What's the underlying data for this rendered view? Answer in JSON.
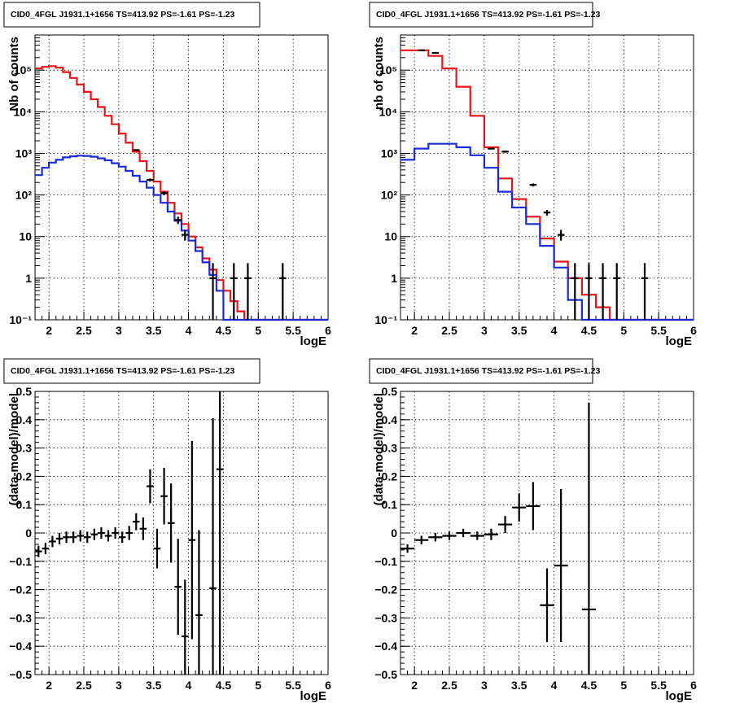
{
  "palette": {
    "data": "#000000",
    "model_total": "#e8141a",
    "model_component": "#1a2bd9",
    "grid": "#000000"
  },
  "chart_data": [
    {
      "type": "line",
      "title": "CID0_4FGL J1931.1+1656 TS=413.92 PS=-1.61 PS=-1.23",
      "xlabel": "logE",
      "ylabel": "Nb of counts",
      "xlim": [
        1.8,
        6.0
      ],
      "ylim": [
        0.1,
        700000
      ],
      "yscale": "log",
      "grid": true,
      "xticks": [
        "2",
        "2.5",
        "3",
        "3.5",
        "4",
        "4.5",
        "5",
        "5.5",
        "6"
      ],
      "yticks": [
        "10⁻¹",
        "1",
        "10",
        "10²",
        "10³",
        "10⁴",
        "10⁵"
      ],
      "bin_edges": [
        1.8,
        1.9,
        2.0,
        2.1,
        2.2,
        2.3,
        2.4,
        2.5,
        2.6,
        2.7,
        2.8,
        2.9,
        3.0,
        3.1,
        3.2,
        3.3,
        3.4,
        3.5,
        3.6,
        3.7,
        3.8,
        3.9,
        4.0,
        4.1,
        4.2,
        4.3,
        4.4,
        4.5,
        4.6,
        4.7,
        4.8,
        4.9,
        5.0,
        5.1,
        5.2,
        5.3,
        5.4,
        5.5,
        5.6,
        5.7,
        5.8,
        5.9,
        6.0
      ],
      "series": [
        {
          "role": "model_total",
          "values": [
            110000,
            120000,
            125000,
            115000,
            90000,
            65000,
            45000,
            30000,
            20000,
            13000,
            8000,
            5000,
            3000,
            1800,
            1100,
            650,
            380,
            210,
            120,
            65,
            36,
            20,
            10,
            5.5,
            3.0,
            1.6,
            0.9,
            0.5,
            0.28,
            0.16,
            0.1,
            0.1,
            0.1,
            0.1,
            0.1,
            0.1,
            0.1,
            0.1,
            0.1,
            0.1,
            0.1,
            0.1
          ]
        },
        {
          "role": "model_component",
          "values": [
            300,
            450,
            600,
            700,
            800,
            850,
            880,
            870,
            830,
            760,
            680,
            580,
            480,
            380,
            290,
            210,
            150,
            100,
            65,
            40,
            24,
            14,
            8,
            4.5,
            2.4,
            1.2,
            0.5,
            0.1,
            0.1,
            0.1,
            0.1,
            0.1,
            0.1,
            0.1,
            0.1,
            0.1,
            0.1,
            0.1,
            0.1,
            0.1,
            0.1,
            0.1
          ]
        }
      ],
      "points": [
        {
          "x": 3.25,
          "y": 1200,
          "yerr_lo": 1150,
          "yerr_hi": 1250
        },
        {
          "x": 3.45,
          "y": 230,
          "yerr_lo": 210,
          "yerr_hi": 250
        },
        {
          "x": 3.65,
          "y": 110,
          "yerr_lo": 98,
          "yerr_hi": 122
        },
        {
          "x": 3.85,
          "y": 25,
          "yerr_lo": 20,
          "yerr_hi": 30
        },
        {
          "x": 3.95,
          "y": 11,
          "yerr_lo": 8,
          "yerr_hi": 14.5
        },
        {
          "x": 4.35,
          "y": 1,
          "yerr_lo": 0.1,
          "yerr_hi": 2.3
        },
        {
          "x": 4.65,
          "y": 1,
          "yerr_lo": 0.1,
          "yerr_hi": 2.3
        },
        {
          "x": 4.85,
          "y": 1,
          "yerr_lo": 0.1,
          "yerr_hi": 2.3
        },
        {
          "x": 5.35,
          "y": 1,
          "yerr_lo": 0.1,
          "yerr_hi": 2.3
        }
      ]
    },
    {
      "type": "line",
      "title": "CID0_4FGL J1931.1+1656 TS=413.92 PS=-1.61 PS=-1.23",
      "xlabel": "logE",
      "ylabel": "nb of counts",
      "xlim": [
        1.8,
        6.0
      ],
      "ylim": [
        0.1,
        700000
      ],
      "yscale": "log",
      "grid": true,
      "xticks": [
        "2",
        "2.5",
        "3",
        "3.5",
        "4",
        "4.5",
        "5",
        "5.5",
        "6"
      ],
      "yticks": [
        "10⁻¹",
        "1",
        "10",
        "10²",
        "10³",
        "10⁴",
        "10⁵"
      ],
      "bin_edges": [
        1.8,
        2.0,
        2.2,
        2.4,
        2.6,
        2.8,
        3.0,
        3.2,
        3.4,
        3.6,
        3.8,
        4.0,
        4.2,
        4.4,
        4.6,
        4.8,
        5.0,
        5.2,
        5.4,
        5.6,
        5.8,
        6.0
      ],
      "series": [
        {
          "role": "model_total",
          "values": [
            300000,
            300000,
            220000,
            110000,
            40000,
            8000,
            1400,
            250,
            80,
            30,
            9,
            2.5,
            1.0,
            0.4,
            0.2,
            0.1,
            0.1,
            0.1,
            0.1,
            0.1,
            0.1
          ]
        },
        {
          "role": "model_component",
          "values": [
            700,
            1300,
            1700,
            1700,
            1400,
            900,
            450,
            120,
            50,
            20,
            6,
            1.8,
            0.3,
            0.1,
            0.1,
            0.1,
            0.1,
            0.1,
            0.1,
            0.1,
            0.1
          ]
        }
      ],
      "points": [
        {
          "x": 2.1,
          "y": 300000,
          "yerr_lo": 298000,
          "yerr_hi": 302000
        },
        {
          "x": 2.3,
          "y": 260000,
          "yerr_lo": 258000,
          "yerr_hi": 262000
        },
        {
          "x": 3.1,
          "y": 1300,
          "yerr_lo": 1250,
          "yerr_hi": 1350
        },
        {
          "x": 3.3,
          "y": 1100,
          "yerr_lo": 1040,
          "yerr_hi": 1160
        },
        {
          "x": 3.7,
          "y": 175,
          "yerr_lo": 160,
          "yerr_hi": 190
        },
        {
          "x": 3.9,
          "y": 38,
          "yerr_lo": 32,
          "yerr_hi": 44
        },
        {
          "x": 4.1,
          "y": 11,
          "yerr_lo": 8,
          "yerr_hi": 14.5
        },
        {
          "x": 4.3,
          "y": 1,
          "yerr_lo": 0.1,
          "yerr_hi": 2.3
        },
        {
          "x": 4.5,
          "y": 1,
          "yerr_lo": 0.1,
          "yerr_hi": 2.3
        },
        {
          "x": 4.7,
          "y": 1,
          "yerr_lo": 0.1,
          "yerr_hi": 2.3
        },
        {
          "x": 4.9,
          "y": 1,
          "yerr_lo": 0.1,
          "yerr_hi": 2.3
        },
        {
          "x": 5.3,
          "y": 1,
          "yerr_lo": 0.1,
          "yerr_hi": 2.3
        }
      ]
    },
    {
      "type": "scatter",
      "title": "CID0_4FGL J1931.1+1656 TS=413.92 PS=-1.61 PS=-1.23",
      "xlabel": "logE",
      "ylabel": "(data-model)/model",
      "xlim": [
        1.8,
        6.0
      ],
      "ylim": [
        -0.5,
        0.5
      ],
      "yscale": "linear",
      "grid": true,
      "xticks": [
        "2",
        "2.5",
        "3",
        "3.5",
        "4",
        "4.5",
        "5",
        "5.5",
        "6"
      ],
      "yticks": [
        "−0.5",
        "−0.4",
        "−0.3",
        "−0.2",
        "−0.1",
        "0",
        "0.1",
        "0.2",
        "0.3",
        "0.4",
        "0.5"
      ],
      "points": [
        {
          "x": 1.85,
          "y": -0.065,
          "xerr": 0.05,
          "yerr": 0.02
        },
        {
          "x": 1.95,
          "y": -0.055,
          "xerr": 0.05,
          "yerr": 0.02
        },
        {
          "x": 2.05,
          "y": -0.03,
          "xerr": 0.05,
          "yerr": 0.02
        },
        {
          "x": 2.15,
          "y": -0.02,
          "xerr": 0.05,
          "yerr": 0.02
        },
        {
          "x": 2.25,
          "y": -0.015,
          "xerr": 0.05,
          "yerr": 0.02
        },
        {
          "x": 2.35,
          "y": -0.015,
          "xerr": 0.05,
          "yerr": 0.02
        },
        {
          "x": 2.45,
          "y": -0.01,
          "xerr": 0.05,
          "yerr": 0.02
        },
        {
          "x": 2.55,
          "y": -0.015,
          "xerr": 0.05,
          "yerr": 0.02
        },
        {
          "x": 2.65,
          "y": -0.005,
          "xerr": 0.05,
          "yerr": 0.02
        },
        {
          "x": 2.75,
          "y": 0.0,
          "xerr": 0.05,
          "yerr": 0.02
        },
        {
          "x": 2.85,
          "y": -0.01,
          "xerr": 0.05,
          "yerr": 0.02
        },
        {
          "x": 2.95,
          "y": 0.0,
          "xerr": 0.05,
          "yerr": 0.02
        },
        {
          "x": 3.05,
          "y": -0.015,
          "xerr": 0.05,
          "yerr": 0.02
        },
        {
          "x": 3.15,
          "y": 0.0,
          "xerr": 0.05,
          "yerr": 0.025
        },
        {
          "x": 3.25,
          "y": 0.04,
          "xerr": 0.05,
          "yerr": 0.03
        },
        {
          "x": 3.35,
          "y": 0.015,
          "xerr": 0.05,
          "yerr": 0.04
        },
        {
          "x": 3.45,
          "y": 0.165,
          "xerr": 0.05,
          "yerr": 0.06
        },
        {
          "x": 3.55,
          "y": -0.055,
          "xerr": 0.05,
          "yerr": 0.07
        },
        {
          "x": 3.65,
          "y": 0.13,
          "xerr": 0.05,
          "yerr": 0.1
        },
        {
          "x": 3.75,
          "y": 0.035,
          "xerr": 0.05,
          "yerr": 0.14
        },
        {
          "x": 3.85,
          "y": -0.19,
          "xerr": 0.05,
          "yerr": 0.17
        },
        {
          "x": 3.95,
          "y": -0.365,
          "xerr": 0.05,
          "yerr": 0.2
        },
        {
          "x": 4.05,
          "y": -0.025,
          "xerr": 0.05,
          "yerr": 0.35
        },
        {
          "x": 4.15,
          "y": -0.29,
          "xerr": 0.05,
          "yerr": 0.3
        },
        {
          "x": 4.35,
          "y": -0.195,
          "xerr": 0.05,
          "yerr": 0.6
        },
        {
          "x": 4.45,
          "y": 0.225,
          "xerr": 0.05,
          "yerr": 0.75
        }
      ]
    },
    {
      "type": "scatter",
      "title": "CID0_4FGL J1931.1+1656 TS=413.92 PS=-1.61 PS=-1.23",
      "xlabel": "logE",
      "ylabel": "(data-model)/model",
      "xlim": [
        1.8,
        6.0
      ],
      "ylim": [
        -0.5,
        0.5
      ],
      "yscale": "linear",
      "grid": true,
      "xticks": [
        "2",
        "2.5",
        "3",
        "3.5",
        "4",
        "4.5",
        "5",
        "5.5",
        "6"
      ],
      "yticks": [
        "−0.5",
        "−0.4",
        "−0.3",
        "−0.2",
        "−0.1",
        "0",
        "0.1",
        "0.2",
        "0.3",
        "0.4",
        "0.5"
      ],
      "points": [
        {
          "x": 1.9,
          "y": -0.055,
          "xerr": 0.1,
          "yerr": 0.015
        },
        {
          "x": 2.1,
          "y": -0.025,
          "xerr": 0.1,
          "yerr": 0.015
        },
        {
          "x": 2.3,
          "y": -0.015,
          "xerr": 0.1,
          "yerr": 0.015
        },
        {
          "x": 2.5,
          "y": -0.01,
          "xerr": 0.1,
          "yerr": 0.015
        },
        {
          "x": 2.7,
          "y": 0.0,
          "xerr": 0.1,
          "yerr": 0.015
        },
        {
          "x": 2.9,
          "y": -0.01,
          "xerr": 0.1,
          "yerr": 0.015
        },
        {
          "x": 3.1,
          "y": -0.005,
          "xerr": 0.1,
          "yerr": 0.02
        },
        {
          "x": 3.3,
          "y": 0.03,
          "xerr": 0.1,
          "yerr": 0.03
        },
        {
          "x": 3.5,
          "y": 0.09,
          "xerr": 0.1,
          "yerr": 0.05
        },
        {
          "x": 3.7,
          "y": 0.095,
          "xerr": 0.1,
          "yerr": 0.085
        },
        {
          "x": 3.9,
          "y": -0.255,
          "xerr": 0.1,
          "yerr": 0.13
        },
        {
          "x": 4.1,
          "y": -0.115,
          "xerr": 0.1,
          "yerr": 0.27
        },
        {
          "x": 4.5,
          "y": -0.27,
          "xerr": 0.1,
          "yerr": 0.73
        }
      ]
    }
  ]
}
